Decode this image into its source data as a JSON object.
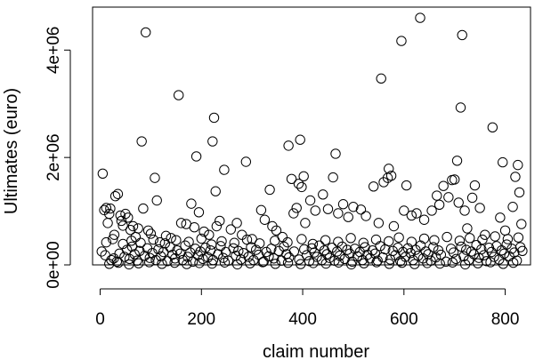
{
  "chart_data": {
    "type": "scatter",
    "title": "",
    "xlabel": "claim number",
    "ylabel": "Ultimates (euro)",
    "xlim": [
      -15,
      850
    ],
    "ylim": [
      0,
      4800000
    ],
    "x_ticks": [
      0,
      200,
      400,
      600,
      800
    ],
    "x_tick_labels": [
      "0",
      "200",
      "400",
      "600",
      "800"
    ],
    "y_ticks": [
      0,
      2000000,
      4000000
    ],
    "y_tick_labels": [
      "0e+00",
      "2e+06",
      "4e+06"
    ],
    "grid": false,
    "legend": "none",
    "marker": "open-circle",
    "points": [
      [
        5,
        1700000
      ],
      [
        8,
        1020000
      ],
      [
        12,
        1060000
      ],
      [
        15,
        780000
      ],
      [
        18,
        950000
      ],
      [
        20,
        1050000
      ],
      [
        28,
        560000
      ],
      [
        30,
        1280000
      ],
      [
        35,
        1320000
      ],
      [
        40,
        920000
      ],
      [
        42,
        820000
      ],
      [
        45,
        730000
      ],
      [
        50,
        950000
      ],
      [
        55,
        880000
      ],
      [
        60,
        650000
      ],
      [
        65,
        720000
      ],
      [
        70,
        520000
      ],
      [
        75,
        680000
      ],
      [
        82,
        2300000
      ],
      [
        85,
        1050000
      ],
      [
        90,
        4330000
      ],
      [
        95,
        640000
      ],
      [
        100,
        580000
      ],
      [
        108,
        1620000
      ],
      [
        112,
        1200000
      ],
      [
        118,
        420000
      ],
      [
        130,
        540000
      ],
      [
        140,
        500000
      ],
      [
        155,
        3160000
      ],
      [
        160,
        780000
      ],
      [
        170,
        760000
      ],
      [
        180,
        1140000
      ],
      [
        186,
        700000
      ],
      [
        190,
        2020000
      ],
      [
        195,
        980000
      ],
      [
        205,
        620000
      ],
      [
        215,
        560000
      ],
      [
        222,
        2300000
      ],
      [
        225,
        2740000
      ],
      [
        228,
        1370000
      ],
      [
        230,
        720000
      ],
      [
        236,
        820000
      ],
      [
        245,
        1770000
      ],
      [
        258,
        660000
      ],
      [
        270,
        780000
      ],
      [
        280,
        560000
      ],
      [
        288,
        1920000
      ],
      [
        300,
        480000
      ],
      [
        318,
        1020000
      ],
      [
        325,
        840000
      ],
      [
        335,
        1400000
      ],
      [
        340,
        720000
      ],
      [
        348,
        640000
      ],
      [
        360,
        520000
      ],
      [
        372,
        2220000
      ],
      [
        378,
        1600000
      ],
      [
        382,
        960000
      ],
      [
        388,
        1060000
      ],
      [
        392,
        1510000
      ],
      [
        395,
        2330000
      ],
      [
        398,
        1450000
      ],
      [
        402,
        1650000
      ],
      [
        405,
        780000
      ],
      [
        415,
        1200000
      ],
      [
        425,
        1010000
      ],
      [
        440,
        1310000
      ],
      [
        450,
        1040000
      ],
      [
        460,
        1630000
      ],
      [
        465,
        2070000
      ],
      [
        470,
        960000
      ],
      [
        480,
        1130000
      ],
      [
        490,
        890000
      ],
      [
        500,
        1080000
      ],
      [
        515,
        1030000
      ],
      [
        525,
        910000
      ],
      [
        540,
        1460000
      ],
      [
        550,
        780000
      ],
      [
        555,
        3470000
      ],
      [
        560,
        1540000
      ],
      [
        568,
        1620000
      ],
      [
        570,
        1790000
      ],
      [
        575,
        1660000
      ],
      [
        580,
        720000
      ],
      [
        595,
        4170000
      ],
      [
        600,
        1010000
      ],
      [
        605,
        1480000
      ],
      [
        615,
        920000
      ],
      [
        625,
        960000
      ],
      [
        632,
        4600000
      ],
      [
        640,
        840000
      ],
      [
        655,
        1010000
      ],
      [
        665,
        1290000
      ],
      [
        670,
        1120000
      ],
      [
        678,
        1470000
      ],
      [
        688,
        1260000
      ],
      [
        695,
        1580000
      ],
      [
        700,
        1590000
      ],
      [
        705,
        1940000
      ],
      [
        708,
        1160000
      ],
      [
        712,
        2930000
      ],
      [
        715,
        4280000
      ],
      [
        720,
        1010000
      ],
      [
        725,
        680000
      ],
      [
        735,
        1250000
      ],
      [
        740,
        1480000
      ],
      [
        750,
        1060000
      ],
      [
        760,
        560000
      ],
      [
        775,
        2560000
      ],
      [
        790,
        880000
      ],
      [
        795,
        1910000
      ],
      [
        800,
        640000
      ],
      [
        815,
        1080000
      ],
      [
        820,
        1640000
      ],
      [
        825,
        1860000
      ],
      [
        828,
        1350000
      ],
      [
        832,
        760000
      ],
      [
        3,
        250000
      ],
      [
        10,
        180000
      ],
      [
        22,
        90000
      ],
      [
        27,
        120000
      ],
      [
        33,
        60000
      ],
      [
        38,
        210000
      ],
      [
        48,
        150000
      ],
      [
        53,
        280000
      ],
      [
        58,
        110000
      ],
      [
        63,
        340000
      ],
      [
        68,
        200000
      ],
      [
        73,
        80000
      ],
      [
        78,
        260000
      ],
      [
        88,
        170000
      ],
      [
        93,
        310000
      ],
      [
        98,
        130000
      ],
      [
        103,
        220000
      ],
      [
        110,
        90000
      ],
      [
        115,
        290000
      ],
      [
        120,
        160000
      ],
      [
        125,
        240000
      ],
      [
        133,
        70000
      ],
      [
        138,
        330000
      ],
      [
        143,
        190000
      ],
      [
        148,
        120000
      ],
      [
        152,
        270000
      ],
      [
        158,
        210000
      ],
      [
        163,
        90000
      ],
      [
        168,
        360000
      ],
      [
        173,
        150000
      ],
      [
        178,
        230000
      ],
      [
        183,
        60000
      ],
      [
        188,
        300000
      ],
      [
        193,
        180000
      ],
      [
        198,
        250000
      ],
      [
        203,
        110000
      ],
      [
        208,
        320000
      ],
      [
        213,
        140000
      ],
      [
        218,
        270000
      ],
      [
        223,
        90000
      ],
      [
        233,
        200000
      ],
      [
        238,
        350000
      ],
      [
        243,
        130000
      ],
      [
        248,
        240000
      ],
      [
        253,
        80000
      ],
      [
        263,
        310000
      ],
      [
        268,
        170000
      ],
      [
        273,
        260000
      ],
      [
        278,
        100000
      ],
      [
        283,
        220000
      ],
      [
        293,
        150000
      ],
      [
        298,
        330000
      ],
      [
        303,
        90000
      ],
      [
        308,
        280000
      ],
      [
        313,
        190000
      ],
      [
        323,
        60000
      ],
      [
        328,
        240000
      ],
      [
        333,
        160000
      ],
      [
        338,
        300000
      ],
      [
        343,
        120000
      ],
      [
        353,
        260000
      ],
      [
        358,
        80000
      ],
      [
        363,
        340000
      ],
      [
        368,
        200000
      ],
      [
        373,
        140000
      ],
      [
        383,
        250000
      ],
      [
        393,
        100000
      ],
      [
        403,
        290000
      ],
      [
        408,
        180000
      ],
      [
        413,
        70000
      ],
      [
        418,
        310000
      ],
      [
        423,
        230000
      ],
      [
        428,
        150000
      ],
      [
        433,
        360000
      ],
      [
        438,
        90000
      ],
      [
        443,
        270000
      ],
      [
        448,
        200000
      ],
      [
        453,
        130000
      ],
      [
        458,
        320000
      ],
      [
        463,
        80000
      ],
      [
        468,
        250000
      ],
      [
        473,
        170000
      ],
      [
        478,
        340000
      ],
      [
        483,
        110000
      ],
      [
        488,
        280000
      ],
      [
        493,
        210000
      ],
      [
        498,
        60000
      ],
      [
        503,
        300000
      ],
      [
        508,
        160000
      ],
      [
        513,
        240000
      ],
      [
        518,
        90000
      ],
      [
        523,
        330000
      ],
      [
        528,
        190000
      ],
      [
        533,
        120000
      ],
      [
        538,
        270000
      ],
      [
        543,
        210000
      ],
      [
        548,
        80000
      ],
      [
        553,
        350000
      ],
      [
        558,
        140000
      ],
      [
        563,
        290000
      ],
      [
        573,
        100000
      ],
      [
        578,
        260000
      ],
      [
        583,
        180000
      ],
      [
        588,
        320000
      ],
      [
        593,
        70000
      ],
      [
        598,
        240000
      ],
      [
        603,
        150000
      ],
      [
        608,
        310000
      ],
      [
        613,
        220000
      ],
      [
        618,
        90000
      ],
      [
        623,
        280000
      ],
      [
        628,
        170000
      ],
      [
        633,
        360000
      ],
      [
        638,
        120000
      ],
      [
        643,
        250000
      ],
      [
        648,
        200000
      ],
      [
        653,
        80000
      ],
      [
        658,
        330000
      ],
      [
        663,
        140000
      ],
      [
        668,
        270000
      ],
      [
        673,
        190000
      ],
      [
        683,
        60000
      ],
      [
        693,
        300000
      ],
      [
        698,
        230000
      ],
      [
        703,
        110000
      ],
      [
        713,
        340000
      ],
      [
        718,
        160000
      ],
      [
        723,
        280000
      ],
      [
        728,
        90000
      ],
      [
        733,
        250000
      ],
      [
        738,
        200000
      ],
      [
        743,
        370000
      ],
      [
        748,
        130000
      ],
      [
        753,
        290000
      ],
      [
        758,
        180000
      ],
      [
        763,
        70000
      ],
      [
        768,
        320000
      ],
      [
        773,
        240000
      ],
      [
        778,
        150000
      ],
      [
        783,
        350000
      ],
      [
        788,
        100000
      ],
      [
        793,
        270000
      ],
      [
        798,
        210000
      ],
      [
        803,
        380000
      ],
      [
        808,
        160000
      ],
      [
        813,
        300000
      ],
      [
        818,
        230000
      ],
      [
        823,
        80000
      ],
      [
        830,
        330000
      ],
      [
        834,
        260000
      ],
      [
        12,
        420000
      ],
      [
        25,
        480000
      ],
      [
        45,
        390000
      ],
      [
        62,
        450000
      ],
      [
        80,
        410000
      ],
      [
        105,
        470000
      ],
      [
        128,
        400000
      ],
      [
        150,
        460000
      ],
      [
        175,
        430000
      ],
      [
        200,
        490000
      ],
      [
        220,
        380000
      ],
      [
        240,
        440000
      ],
      [
        265,
        410000
      ],
      [
        290,
        470000
      ],
      [
        315,
        400000
      ],
      [
        345,
        450000
      ],
      [
        370,
        420000
      ],
      [
        398,
        480000
      ],
      [
        420,
        390000
      ],
      [
        445,
        460000
      ],
      [
        470,
        430000
      ],
      [
        495,
        500000
      ],
      [
        520,
        410000
      ],
      [
        545,
        470000
      ],
      [
        570,
        440000
      ],
      [
        590,
        510000
      ],
      [
        615,
        430000
      ],
      [
        640,
        490000
      ],
      [
        660,
        460000
      ],
      [
        685,
        520000
      ],
      [
        710,
        450000
      ],
      [
        730,
        500000
      ],
      [
        755,
        470000
      ],
      [
        780,
        530000
      ],
      [
        805,
        480000
      ],
      [
        826,
        510000
      ],
      [
        18,
        20000
      ],
      [
        36,
        40000
      ],
      [
        57,
        10000
      ],
      [
        76,
        30000
      ],
      [
        97,
        50000
      ],
      [
        122,
        20000
      ],
      [
        147,
        40000
      ],
      [
        171,
        15000
      ],
      [
        196,
        35000
      ],
      [
        221,
        25000
      ],
      [
        246,
        45000
      ],
      [
        271,
        10000
      ],
      [
        296,
        30000
      ],
      [
        321,
        50000
      ],
      [
        346,
        20000
      ],
      [
        371,
        40000
      ],
      [
        396,
        15000
      ],
      [
        421,
        35000
      ],
      [
        446,
        25000
      ],
      [
        471,
        45000
      ],
      [
        496,
        10000
      ],
      [
        521,
        30000
      ],
      [
        546,
        50000
      ],
      [
        571,
        20000
      ],
      [
        596,
        40000
      ],
      [
        621,
        15000
      ],
      [
        646,
        35000
      ],
      [
        671,
        25000
      ],
      [
        696,
        45000
      ],
      [
        721,
        10000
      ],
      [
        746,
        30000
      ],
      [
        771,
        50000
      ],
      [
        796,
        20000
      ],
      [
        816,
        40000
      ]
    ]
  }
}
